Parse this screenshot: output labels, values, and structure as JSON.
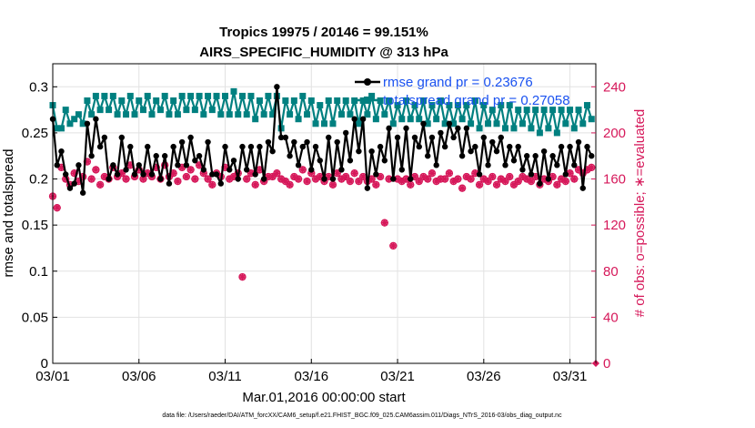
{
  "chart_data": {
    "type": "line",
    "title": "Tropics 19975 / 20146 = 99.151%",
    "subtitle": "AIRS_SPECIFIC_HUMIDITY @ 313 hPa",
    "xlabel": "Mar.01,2016 00:00:00 start",
    "ylabel": "rmse and totalspread",
    "ylabel_right": "# of obs: o=possible; ∗=evaluated",
    "footnote": "data file: /Users/raeder/DAI/ATM_forcXX/CAM6_setup/f.e21.FHIST_BGC.f09_025.CAM6assim.011/Diags_NTrS_2016-03/obs_diag_output.nc",
    "xlim": [
      0,
      31.5
    ],
    "ylim": [
      0,
      0.325
    ],
    "ylim_right": [
      0,
      260
    ],
    "x_ticks": [
      0,
      5,
      10,
      15,
      20,
      25,
      30
    ],
    "x_tick_labels": [
      "03/01",
      "03/06",
      "03/11",
      "03/16",
      "03/21",
      "03/26",
      "03/31"
    ],
    "y_ticks": [
      0,
      0.05,
      0.1,
      0.15,
      0.2,
      0.25,
      0.3
    ],
    "y_tick_labels": [
      "0",
      "0.05",
      "0.1",
      "0.15",
      "0.2",
      "0.25",
      "0.3"
    ],
    "y_ticks_right": [
      0,
      40,
      80,
      120,
      160,
      200,
      240
    ],
    "y_tick_labels_right": [
      "0",
      "40",
      "80",
      "120",
      "160",
      "200",
      "240"
    ],
    "grid": true,
    "legend_position": "top-right",
    "x_step_days": 0.25,
    "series": [
      {
        "name": "rmse",
        "legend": "rmse grand pr = 0.23676",
        "color": "#000000",
        "axis": "left",
        "values": [
          0.265,
          0.215,
          0.23,
          0.205,
          0.19,
          0.195,
          0.215,
          0.185,
          0.26,
          0.225,
          0.265,
          0.235,
          0.245,
          0.2,
          0.215,
          0.205,
          0.245,
          0.21,
          0.235,
          0.205,
          0.215,
          0.205,
          0.235,
          0.205,
          0.225,
          0.2,
          0.225,
          0.195,
          0.235,
          0.215,
          0.24,
          0.215,
          0.245,
          0.22,
          0.225,
          0.21,
          0.24,
          0.205,
          0.205,
          0.195,
          0.235,
          0.21,
          0.22,
          0.2,
          0.235,
          0.21,
          0.235,
          0.205,
          0.235,
          0.2,
          0.24,
          0.23,
          0.3,
          0.245,
          0.245,
          0.225,
          0.24,
          0.215,
          0.235,
          0.24,
          0.21,
          0.235,
          0.22,
          0.2,
          0.245,
          0.2,
          0.24,
          0.21,
          0.25,
          0.22,
          0.265,
          0.23,
          0.265,
          0.19,
          0.23,
          0.205,
          0.235,
          0.22,
          0.255,
          0.2,
          0.245,
          0.21,
          0.255,
          0.2,
          0.245,
          0.235,
          0.26,
          0.225,
          0.245,
          0.215,
          0.25,
          0.235,
          0.26,
          0.245,
          0.255,
          0.225,
          0.255,
          0.23,
          0.235,
          0.205,
          0.245,
          0.215,
          0.24,
          0.23,
          0.245,
          0.215,
          0.235,
          0.22,
          0.235,
          0.21,
          0.225,
          0.205,
          0.225,
          0.195,
          0.23,
          0.2,
          0.225,
          0.215,
          0.235,
          0.205,
          0.235,
          0.215,
          0.24,
          0.19,
          0.235,
          0.225
        ],
        "marker": "filled-circle"
      },
      {
        "name": "totalspread",
        "legend": "totalspread grand pr = 0.27058",
        "color": "#008080",
        "axis": "left",
        "values": [
          0.28,
          0.255,
          0.255,
          0.275,
          0.26,
          0.265,
          0.27,
          0.26,
          0.285,
          0.27,
          0.29,
          0.275,
          0.29,
          0.275,
          0.29,
          0.27,
          0.285,
          0.27,
          0.29,
          0.27,
          0.285,
          0.275,
          0.29,
          0.27,
          0.285,
          0.275,
          0.29,
          0.27,
          0.285,
          0.27,
          0.29,
          0.275,
          0.29,
          0.275,
          0.29,
          0.27,
          0.29,
          0.275,
          0.29,
          0.27,
          0.29,
          0.27,
          0.295,
          0.27,
          0.29,
          0.27,
          0.29,
          0.265,
          0.285,
          0.27,
          0.29,
          0.27,
          0.29,
          0.255,
          0.285,
          0.27,
          0.285,
          0.265,
          0.29,
          0.27,
          0.285,
          0.26,
          0.28,
          0.26,
          0.285,
          0.26,
          0.285,
          0.27,
          0.285,
          0.27,
          0.285,
          0.26,
          0.285,
          0.27,
          0.29,
          0.265,
          0.285,
          0.27,
          0.285,
          0.26,
          0.28,
          0.265,
          0.285,
          0.265,
          0.28,
          0.265,
          0.285,
          0.26,
          0.28,
          0.265,
          0.285,
          0.26,
          0.28,
          0.26,
          0.28,
          0.265,
          0.28,
          0.26,
          0.285,
          0.255,
          0.28,
          0.26,
          0.275,
          0.26,
          0.28,
          0.255,
          0.28,
          0.255,
          0.275,
          0.26,
          0.275,
          0.255,
          0.275,
          0.25,
          0.275,
          0.255,
          0.275,
          0.25,
          0.275,
          0.26,
          0.275,
          0.255,
          0.275,
          0.26,
          0.28,
          0.265
        ],
        "marker": "filled-square"
      },
      {
        "name": "# obs possible",
        "color": "#d6185a",
        "axis": "right",
        "marker": "open-circle",
        "values": [
          145,
          135,
          170,
          160,
          155,
          165,
          158,
          162,
          175,
          160,
          168,
          155,
          162,
          160,
          170,
          162,
          165,
          160,
          172,
          162,
          168,
          160,
          165,
          162,
          170,
          160,
          172,
          162,
          165,
          158,
          170,
          162,
          168,
          160,
          172,
          165,
          160,
          155,
          165,
          162,
          170,
          160,
          162,
          165,
          75,
          160,
          165,
          155,
          168,
          158,
          162,
          162,
          165,
          160,
          158,
          155,
          162,
          160,
          168,
          158,
          165,
          160,
          162,
          158,
          162,
          155,
          165,
          160,
          162,
          158,
          165,
          158,
          162,
          158,
          160,
          155,
          162,
          122,
          160,
          102,
          160,
          158,
          160,
          155,
          162,
          158,
          162,
          160,
          165,
          158,
          160,
          160,
          165,
          158,
          160,
          152,
          162,
          160,
          165,
          155,
          160,
          158,
          162,
          155,
          160,
          158,
          162,
          155,
          158,
          162,
          160,
          158,
          162,
          155,
          160,
          158,
          162,
          155,
          160,
          158,
          165,
          160,
          168,
          165,
          168,
          170
        ]
      },
      {
        "name": "# obs evaluated",
        "color": "#d6185a",
        "axis": "right",
        "marker": "asterisk",
        "values": [
          145,
          135,
          170,
          160,
          155,
          165,
          158,
          162,
          175,
          160,
          168,
          155,
          162,
          160,
          170,
          162,
          165,
          160,
          172,
          162,
          168,
          160,
          165,
          162,
          170,
          160,
          172,
          162,
          165,
          158,
          170,
          162,
          168,
          160,
          172,
          165,
          160,
          155,
          165,
          162,
          170,
          160,
          162,
          165,
          75,
          160,
          165,
          155,
          168,
          158,
          162,
          162,
          165,
          160,
          158,
          155,
          162,
          160,
          168,
          158,
          165,
          160,
          162,
          158,
          162,
          155,
          165,
          160,
          162,
          158,
          165,
          158,
          162,
          158,
          160,
          155,
          162,
          122,
          160,
          102,
          160,
          158,
          160,
          155,
          162,
          158,
          162,
          160,
          165,
          158,
          160,
          160,
          165,
          158,
          160,
          152,
          162,
          160,
          165,
          155,
          160,
          158,
          162,
          155,
          160,
          158,
          162,
          155,
          158,
          162,
          160,
          158,
          162,
          155,
          160,
          158,
          162,
          155,
          160,
          158,
          165,
          160,
          168,
          165,
          168,
          170
        ]
      }
    ]
  }
}
